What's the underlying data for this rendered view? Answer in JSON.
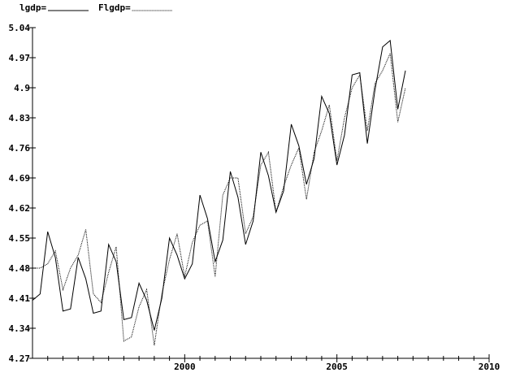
{
  "chart_data": {
    "type": "line",
    "title": "",
    "xlabel": "",
    "ylabel": "",
    "xlim": [
      1995.0,
      2010.0
    ],
    "ylim": [
      4.27,
      5.04
    ],
    "y_ticks": [
      "4.27",
      "4.34",
      "4.41",
      "4.48",
      "4.55",
      "4.62",
      "4.69",
      "4.76",
      "4.83",
      "4.9",
      "4.97",
      "5.04"
    ],
    "y_tick_values": [
      4.27,
      4.34,
      4.41,
      4.48,
      4.55,
      4.62,
      4.69,
      4.76,
      4.83,
      4.9,
      4.97,
      5.04
    ],
    "x_tick_labels": [
      "2000",
      "2005",
      "2010"
    ],
    "x_tick_values": [
      2000,
      2005,
      2010
    ],
    "x_minor_step": 0.5,
    "grid": false,
    "legend_position": "top-left",
    "x": [
      1995.0,
      1995.25,
      1995.5,
      1995.75,
      1996.0,
      1996.25,
      1996.5,
      1996.75,
      1997.0,
      1997.25,
      1997.5,
      1997.75,
      1998.0,
      1998.25,
      1998.5,
      1998.75,
      1999.0,
      1999.25,
      1999.5,
      1999.75,
      2000.0,
      2000.25,
      2000.5,
      2000.75,
      2001.0,
      2001.25,
      2001.5,
      2001.75,
      2002.0,
      2002.25,
      2002.5,
      2002.75,
      2003.0,
      2003.25,
      2003.5,
      2003.75,
      2004.0,
      2004.25,
      2004.5,
      2004.75,
      2005.0,
      2005.25,
      2005.5,
      2005.75,
      2006.0,
      2006.25,
      2006.5,
      2006.75,
      2007.0,
      2007.25
    ],
    "series": [
      {
        "name": "lgdp=",
        "style": "solid",
        "values": [
          4.405,
          4.42,
          4.565,
          4.505,
          4.38,
          4.385,
          4.505,
          4.455,
          4.375,
          4.38,
          4.535,
          4.495,
          4.36,
          4.365,
          4.445,
          4.405,
          4.335,
          4.41,
          4.55,
          4.51,
          4.455,
          4.49,
          4.65,
          4.595,
          4.495,
          4.545,
          4.705,
          4.645,
          4.535,
          4.59,
          4.75,
          4.695,
          4.61,
          4.66,
          4.815,
          4.765,
          4.675,
          4.735,
          4.88,
          4.84,
          4.72,
          4.79,
          4.93,
          4.935,
          4.77,
          4.895,
          4.995,
          5.01,
          4.85,
          4.94
        ]
      },
      {
        "name": "Flgdp=",
        "style": "dotted",
        "values": [
          4.48,
          4.48,
          4.49,
          4.52,
          4.43,
          4.48,
          4.51,
          4.57,
          4.42,
          4.4,
          4.47,
          4.53,
          4.31,
          4.32,
          4.39,
          4.43,
          4.3,
          4.42,
          4.5,
          4.56,
          4.46,
          4.54,
          4.58,
          4.59,
          4.46,
          4.65,
          4.69,
          4.69,
          4.56,
          4.6,
          4.72,
          4.75,
          4.61,
          4.67,
          4.72,
          4.76,
          4.64,
          4.75,
          4.8,
          4.86,
          4.73,
          4.83,
          4.9,
          4.93,
          4.8,
          4.91,
          4.94,
          4.98,
          4.82,
          4.9
        ]
      }
    ]
  }
}
